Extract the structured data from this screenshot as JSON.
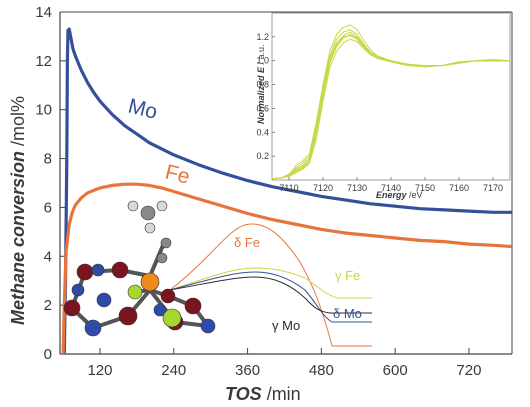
{
  "chart_data": [
    {
      "type": "line",
      "xlabel_bold": "TOS",
      "xlabel_rest": " /min",
      "ylabel_bold": "Methane conversion",
      "ylabel_rest": " /mol%",
      "xlim": [
        55,
        790
      ],
      "ylim": [
        0,
        14
      ],
      "xticks": [
        120,
        240,
        360,
        480,
        600,
        720
      ],
      "yticks": [
        0,
        2,
        4,
        6,
        8,
        10,
        12,
        14
      ],
      "grid": false,
      "series": [
        {
          "name": "Mo",
          "color": "#34509a",
          "x": [
            62,
            64,
            66,
            67,
            68,
            70,
            73,
            76,
            80,
            85,
            90,
            100,
            110,
            120,
            140,
            160,
            180,
            200,
            240,
            280,
            320,
            360,
            400,
            440,
            480,
            520,
            560,
            600,
            640,
            680,
            720,
            760,
            790
          ],
          "y": [
            0,
            3.0,
            8.0,
            12.0,
            13.25,
            13.3,
            12.9,
            12.5,
            12.2,
            11.9,
            11.6,
            11.1,
            10.7,
            10.35,
            9.8,
            9.35,
            9.0,
            8.65,
            8.15,
            7.75,
            7.4,
            7.1,
            6.85,
            6.65,
            6.45,
            6.3,
            6.15,
            6.05,
            5.95,
            5.9,
            5.85,
            5.8,
            5.8
          ]
        },
        {
          "name": "Fe",
          "color": "#e8743b",
          "x": [
            60,
            62,
            65,
            70,
            75,
            80,
            90,
            100,
            120,
            140,
            160,
            180,
            200,
            220,
            240,
            280,
            320,
            360,
            400,
            440,
            480,
            520,
            560,
            600,
            640,
            680,
            720,
            760,
            790
          ],
          "y": [
            0,
            2.0,
            4.2,
            5.3,
            5.8,
            6.1,
            6.4,
            6.6,
            6.8,
            6.9,
            6.95,
            6.95,
            6.9,
            6.8,
            6.65,
            6.35,
            6.05,
            5.75,
            5.5,
            5.3,
            5.1,
            4.95,
            4.85,
            4.75,
            4.65,
            4.6,
            4.5,
            4.45,
            4.4
          ]
        }
      ]
    },
    {
      "type": "line",
      "xlabel_bold": "Energy",
      "xlabel_rest": " /eV",
      "ylabel_bold": "Normalized E",
      "ylabel_rest": " /  a.u.",
      "xlim": [
        7105,
        7175
      ],
      "ylim": [
        0,
        1.4
      ],
      "xticks": [
        7110,
        7120,
        7130,
        7140,
        7150,
        7160,
        7170
      ],
      "yticks": [
        0.2,
        0.4,
        0.6,
        0.8,
        1.0,
        1.2
      ],
      "color": "#c8d845",
      "series": [
        {
          "x": [
            7105,
            7108,
            7110,
            7112,
            7114,
            7116,
            7118,
            7120,
            7122,
            7124,
            7126,
            7128,
            7130,
            7132,
            7134,
            7136,
            7140,
            7145,
            7150,
            7155,
            7160,
            7165,
            7170,
            7175
          ],
          "y": [
            0.01,
            0.02,
            0.04,
            0.12,
            0.16,
            0.22,
            0.48,
            0.8,
            1.08,
            1.22,
            1.28,
            1.3,
            1.26,
            1.17,
            1.09,
            1.04,
            1.0,
            0.97,
            0.95,
            0.96,
            0.99,
            1.0,
            1.0,
            1.0
          ]
        },
        {
          "x": [
            7105,
            7108,
            7110,
            7112,
            7114,
            7116,
            7118,
            7120,
            7122,
            7124,
            7126,
            7128,
            7130,
            7132,
            7134,
            7136,
            7140,
            7145,
            7150,
            7155,
            7160,
            7165,
            7170,
            7175
          ],
          "y": [
            0.01,
            0.02,
            0.05,
            0.09,
            0.12,
            0.18,
            0.44,
            0.76,
            1.04,
            1.18,
            1.24,
            1.26,
            1.22,
            1.14,
            1.07,
            1.03,
            0.99,
            0.97,
            0.95,
            0.96,
            0.98,
            1.0,
            1.01,
            1.0
          ]
        },
        {
          "x": [
            7105,
            7108,
            7110,
            7112,
            7114,
            7116,
            7118,
            7120,
            7122,
            7124,
            7126,
            7128,
            7130,
            7132,
            7134,
            7136,
            7140,
            7145,
            7150,
            7155,
            7160,
            7165,
            7170,
            7175
          ],
          "y": [
            0.01,
            0.02,
            0.03,
            0.07,
            0.1,
            0.15,
            0.38,
            0.7,
            0.98,
            1.12,
            1.19,
            1.22,
            1.19,
            1.12,
            1.06,
            1.02,
            0.99,
            0.96,
            0.95,
            0.96,
            0.99,
            1.0,
            1.0,
            1.0
          ]
        },
        {
          "x": [
            7105,
            7108,
            7110,
            7112,
            7114,
            7116,
            7118,
            7120,
            7122,
            7124,
            7126,
            7128,
            7130,
            7132,
            7134,
            7136,
            7140,
            7145,
            7150,
            7155,
            7160,
            7165,
            7170,
            7175
          ],
          "y": [
            0.01,
            0.02,
            0.04,
            0.1,
            0.14,
            0.2,
            0.46,
            0.78,
            1.02,
            1.15,
            1.21,
            1.24,
            1.2,
            1.13,
            1.07,
            1.03,
            1.0,
            0.97,
            0.96,
            0.96,
            0.98,
            1.0,
            1.0,
            1.0
          ]
        },
        {
          "x": [
            7105,
            7108,
            7110,
            7112,
            7114,
            7116,
            7118,
            7120,
            7122,
            7124,
            7126,
            7128,
            7130,
            7132,
            7134,
            7136,
            7140,
            7145,
            7150,
            7155,
            7160,
            7165,
            7170,
            7175
          ],
          "y": [
            0.01,
            0.02,
            0.03,
            0.06,
            0.09,
            0.14,
            0.34,
            0.66,
            0.94,
            1.08,
            1.15,
            1.18,
            1.16,
            1.1,
            1.05,
            1.02,
            0.99,
            0.96,
            0.95,
            0.96,
            0.98,
            1.0,
            1.0,
            1.0
          ]
        },
        {
          "x": [
            7105,
            7108,
            7110,
            7112,
            7114,
            7116,
            7118,
            7120,
            7122,
            7124,
            7126,
            7128,
            7130,
            7132,
            7134,
            7136,
            7140,
            7145,
            7150,
            7155,
            7160,
            7165,
            7170,
            7175
          ],
          "y": [
            0.01,
            0.02,
            0.04,
            0.08,
            0.11,
            0.17,
            0.4,
            0.72,
            1.0,
            1.13,
            1.2,
            1.21,
            1.18,
            1.11,
            1.05,
            1.02,
            0.99,
            0.97,
            0.95,
            0.96,
            0.98,
            1.0,
            1.0,
            1.0
          ]
        }
      ]
    }
  ],
  "schematic": {
    "peaks": [
      {
        "label": "δ Fe",
        "color": "#e8743b"
      },
      {
        "label": "γ Fe",
        "color": "#c8d845"
      },
      {
        "label": "δ Mo",
        "color": "#34509a"
      },
      {
        "label": "γ Mo",
        "color": "#2b2b2b"
      }
    ],
    "colors": {
      "mo_atom": "#7a1420",
      "o_atom": "#2f4aa8",
      "fe_atom": "#f08a1a",
      "cl_atom": "#a8d630",
      "c_atom": "#888888",
      "h_atom": "#d8d8d8"
    }
  }
}
